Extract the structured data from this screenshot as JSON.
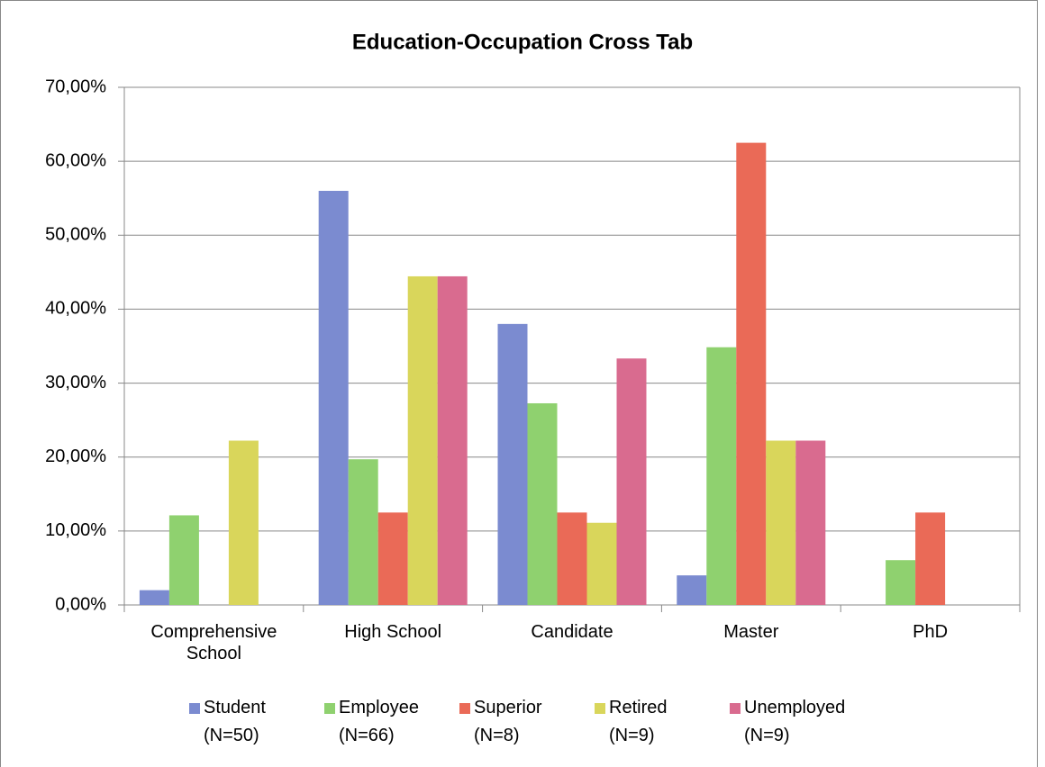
{
  "chart_data": {
    "type": "bar",
    "title": "Education-Occupation Cross Tab",
    "categories": [
      "Comprehensive School",
      "High School",
      "Candidate",
      "Master",
      "PhD"
    ],
    "series": [
      {
        "name": "Student (N=50)",
        "color": "#7b8bd0",
        "values": [
          2,
          56,
          38,
          4,
          0
        ]
      },
      {
        "name": "Employee (N=66)",
        "color": "#8fd16f",
        "values": [
          12.12,
          19.7,
          27.27,
          34.85,
          6.06
        ]
      },
      {
        "name": "Superior (N=8)",
        "color": "#ea6a57",
        "values": [
          0,
          12.5,
          12.5,
          62.5,
          12.5
        ]
      },
      {
        "name": "Retired (N=9)",
        "color": "#d9d65b",
        "values": [
          22.22,
          44.44,
          11.11,
          22.22,
          0
        ]
      },
      {
        "name": "Unemployed (N=9)",
        "color": "#d96b8f",
        "values": [
          0,
          44.44,
          33.33,
          22.22,
          0
        ]
      }
    ],
    "ylim": [
      0,
      70
    ],
    "yticks": [
      {
        "value": 0,
        "label": "0,00%"
      },
      {
        "value": 10,
        "label": "10,00%"
      },
      {
        "value": 20,
        "label": "20,00%"
      },
      {
        "value": 30,
        "label": "30,00%"
      },
      {
        "value": 40,
        "label": "40,00%"
      },
      {
        "value": 50,
        "label": "50,00%"
      },
      {
        "value": 60,
        "label": "60,00%"
      },
      {
        "value": 70,
        "label": "70,00%"
      }
    ],
    "grid": true,
    "legend": "bottom"
  }
}
